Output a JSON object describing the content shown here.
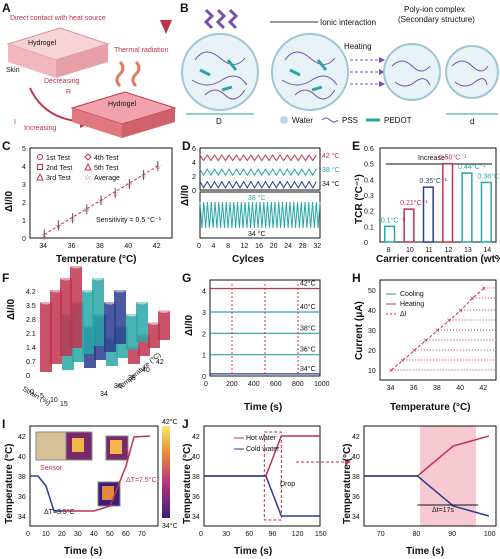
{
  "panels": {
    "A": {
      "label": "A",
      "direct": "Direct contact with heat source",
      "hydrogel_top": "Hydrogel",
      "skin_top": "Skin",
      "thermal": "Thermal radiation",
      "decreasing": "Decreasing",
      "R": "R",
      "I": "I",
      "increasing": "Increasing",
      "hydrogel_bottom": "Hydrogel",
      "skin_bottom": "Skin"
    },
    "B": {
      "label": "B",
      "ionic": "Ionic interaction",
      "poly1": "Poly-ion complex",
      "poly2": "(Secondary structure)",
      "heating": "Heating",
      "D": "D",
      "d": "d",
      "water": "Water",
      "pss": "PSS",
      "pedot": "PEDOT"
    },
    "C": {
      "label": "C",
      "legend": [
        "1st Test",
        "2nd Test",
        "3rd Test",
        "4th Test",
        "5th Test",
        "Average"
      ],
      "sensitivity": "Sensitivity = 0.5 °C⁻¹"
    },
    "D": {
      "label": "D",
      "t42": "42 °C",
      "t38": "38 °C",
      "t34": "34 °C",
      "b38": "38 °C",
      "b34": "34 °C"
    },
    "E": {
      "label": "E",
      "increase": "Increase"
    },
    "F": {
      "label": "F"
    },
    "G": {
      "label": "G"
    },
    "H": {
      "label": "H",
      "legend": [
        "Cooling",
        "Heating",
        "ΔI"
      ]
    },
    "I": {
      "label": "I",
      "sensor": "Sensor",
      "dt1": "ΔT=7.5°C",
      "dt2": "ΔT=3.5°C",
      "cb_top": "42°C",
      "cb_bottom": "34°C"
    },
    "J": {
      "label": "J",
      "legend": [
        "Hot water",
        "Cold water"
      ],
      "drop": "Drop",
      "dt": "Δt=17s"
    }
  },
  "chart_data": [
    {
      "id": "C",
      "type": "scatter",
      "xlabel": "Temperature (°C)",
      "ylabel": "ΔI/I0",
      "xlim": [
        33,
        43
      ],
      "ylim": [
        0,
        5
      ],
      "x": [
        34,
        35,
        36,
        37,
        38,
        39,
        40,
        41,
        42
      ],
      "xticks": [
        34,
        36,
        38,
        40,
        42
      ],
      "yticks": [
        0,
        1,
        2,
        3,
        4,
        5
      ],
      "series": [
        {
          "name": "Average",
          "values": [
            0.2,
            0.7,
            1.1,
            1.6,
            2.1,
            2.5,
            3.0,
            3.5,
            4.0
          ]
        }
      ]
    },
    {
      "id": "D",
      "type": "line",
      "xlabel": "Cylces",
      "ylabel": "ΔI/I0",
      "xticks": [
        0,
        4,
        8,
        12,
        16,
        20,
        24,
        28,
        32
      ],
      "yticks": [
        0,
        2,
        4,
        6
      ],
      "ylim": [
        0,
        6
      ],
      "series": [
        {
          "name": "42 °C",
          "values": [
            5.0,
            4.2
          ]
        },
        {
          "name": "38 °C",
          "values": [
            3.0,
            2.1
          ]
        },
        {
          "name": "34 °C",
          "values": [
            1.2,
            0.3
          ]
        }
      ]
    },
    {
      "id": "E",
      "type": "bar",
      "xlabel": "Carrier concentration (wt%)",
      "ylabel": "TCR (°C⁻¹)",
      "ylim": [
        0,
        0.6
      ],
      "yticks": [
        0,
        0.1,
        0.2,
        0.3,
        0.4,
        0.5,
        0.6
      ],
      "categories": [
        "8",
        "10",
        "11",
        "12",
        "13",
        "14"
      ],
      "values": [
        0.1,
        0.21,
        0.35,
        0.5,
        0.44,
        0.38
      ],
      "labels": [
        "0.1°C⁻¹",
        "0.21°C⁻¹",
        "0.35°C⁻¹",
        "0.50°C⁻¹",
        "0.44°C⁻¹",
        "0.38°C⁻¹"
      ]
    },
    {
      "id": "F",
      "type": "bar",
      "ylabel": "ΔI/I0",
      "xlabel": "Strain (%)",
      "zlabel": "Temperature (°C)",
      "yticks": [
        "0",
        "0.7",
        "1.4",
        "2.1",
        "2.8",
        "3.5",
        "4.2"
      ],
      "xticks": [
        "0",
        "5",
        "10",
        "15"
      ],
      "zticks": [
        "34",
        "36",
        "38",
        "40",
        "42"
      ]
    },
    {
      "id": "G",
      "type": "line",
      "xlabel": "Time (s)",
      "ylabel": "ΔI/I0",
      "xlim": [
        0,
        1000
      ],
      "ylim": [
        0,
        4.5
      ],
      "xticks": [
        0,
        200,
        400,
        600,
        800,
        1000
      ],
      "yticks": [
        0,
        1,
        2,
        3,
        4
      ],
      "series": [
        {
          "name": "42°C",
          "values": [
            4.1
          ]
        },
        {
          "name": "40°C",
          "values": [
            3.0
          ]
        },
        {
          "name": "38°C",
          "values": [
            2.0
          ]
        },
        {
          "name": "36°C",
          "values": [
            1.0
          ]
        },
        {
          "name": "34°C",
          "values": [
            0.1
          ]
        }
      ]
    },
    {
      "id": "H",
      "type": "line",
      "xlabel": "Temperature (°C)",
      "ylabel": "Current (μA)",
      "xlim": [
        33,
        43
      ],
      "ylim": [
        5,
        55
      ],
      "xticks": [
        34,
        36,
        38,
        40,
        42
      ],
      "yticks": [
        10,
        20,
        30,
        40,
        50
      ],
      "x": [
        34,
        35,
        36,
        37,
        38,
        39,
        40,
        41,
        42
      ],
      "series": [
        {
          "name": "Cooling",
          "values": [
            10,
            15,
            20,
            25,
            30,
            35,
            40,
            46,
            51
          ]
        },
        {
          "name": "Heating",
          "values": [
            10,
            15,
            20,
            25,
            30,
            35,
            40,
            46,
            51
          ]
        }
      ]
    },
    {
      "id": "I",
      "type": "line",
      "xlabel": "Time (s)",
      "ylabel": "Temperature (°C)",
      "xlim": [
        0,
        80
      ],
      "ylim": [
        33,
        43
      ],
      "xticks": [
        0,
        10,
        20,
        30,
        40,
        50,
        60,
        70
      ],
      "yticks": [
        34,
        36,
        38,
        40,
        42
      ],
      "series": [
        {
          "values": [
            38,
            38,
            37,
            34.5,
            34.5,
            34.5,
            34.5,
            35,
            39,
            41.9,
            42
          ]
        }
      ]
    },
    {
      "id": "J1",
      "type": "line",
      "xlabel": "Time (s)",
      "ylabel": "Temperature (°C)",
      "xlim": [
        0,
        150
      ],
      "ylim": [
        33,
        43
      ],
      "xticks": [
        0,
        30,
        60,
        90,
        120,
        150
      ],
      "yticks": [
        34,
        36,
        38,
        40,
        42
      ],
      "series": [
        {
          "name": "Hot water",
          "values": [
            38,
            38,
            38,
            42,
            42
          ]
        },
        {
          "name": "Cold water",
          "values": [
            38,
            38,
            38,
            34,
            34
          ]
        }
      ]
    },
    {
      "id": "J2",
      "type": "line",
      "xlim": [
        65,
        102
      ],
      "ylim": [
        33,
        43
      ],
      "xticks": [
        70,
        80,
        90,
        100
      ],
      "yticks": [
        34,
        36,
        38,
        40,
        42
      ],
      "series": [
        {
          "name": "Hot water",
          "values": [
            38,
            38,
            41,
            42
          ]
        },
        {
          "name": "Cold water",
          "values": [
            38,
            38,
            35,
            34
          ]
        }
      ]
    }
  ]
}
